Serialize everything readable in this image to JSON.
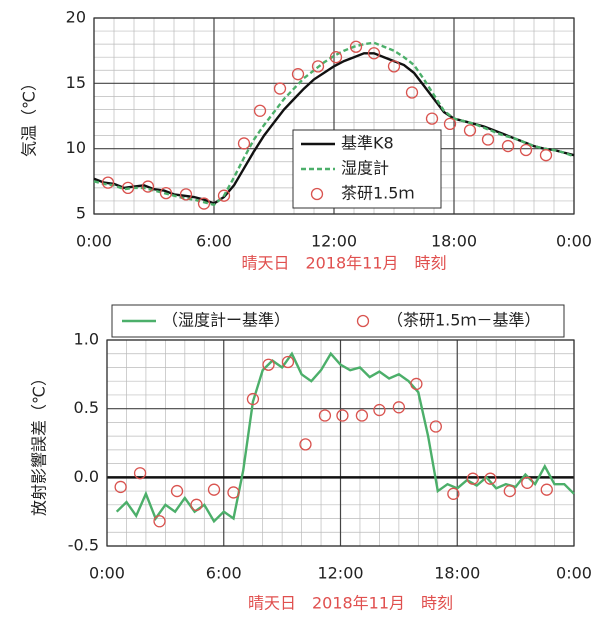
{
  "chart_data": [
    {
      "type": "line",
      "ylabel": "気温（℃）",
      "xlabel": "晴天日　2018年11月　時刻",
      "xlim": [
        0,
        24
      ],
      "xticks": [
        {
          "value": 0,
          "label": "0:00"
        },
        {
          "value": 6,
          "label": "6:00"
        },
        {
          "value": 12,
          "label": "12:00"
        },
        {
          "value": 18,
          "label": "18:00"
        },
        {
          "value": 24,
          "label": "0:00"
        }
      ],
      "ylim": [
        5,
        20
      ],
      "yticks": [
        5,
        10,
        15,
        20
      ],
      "grid": true,
      "legend": "center right",
      "series": [
        {
          "name": "基準K8",
          "color": "#111111",
          "style": "solid",
          "x": [
            0,
            0.5,
            1,
            1.5,
            2,
            2.5,
            3,
            3.5,
            4,
            4.5,
            5,
            5.5,
            6,
            6.5,
            7,
            7.5,
            8,
            8.5,
            9,
            9.5,
            10,
            10.5,
            11,
            11.5,
            12,
            12.5,
            13,
            13.5,
            14,
            14.5,
            15,
            15.5,
            16,
            16.5,
            17,
            17.5,
            18,
            18.5,
            19,
            19.5,
            20,
            20.5,
            21,
            21.5,
            22,
            22.5,
            23,
            23.5,
            24
          ],
          "values": [
            7.7,
            7.4,
            7.3,
            7.0,
            7.1,
            7.2,
            6.9,
            6.8,
            6.5,
            6.4,
            6.3,
            6.1,
            5.8,
            6.3,
            7.2,
            8.5,
            9.8,
            11.0,
            12.0,
            13.0,
            13.8,
            14.6,
            15.3,
            15.8,
            16.3,
            16.7,
            17.0,
            17.3,
            17.3,
            17.0,
            16.7,
            16.4,
            15.8,
            14.8,
            13.8,
            12.8,
            12.3,
            12.1,
            11.9,
            11.7,
            11.4,
            11.1,
            10.8,
            10.5,
            10.2,
            10.0,
            9.9,
            9.7,
            9.5
          ]
        },
        {
          "name": "湿度計",
          "color": "#4caf6a",
          "style": "dashed",
          "x": [
            0,
            0.5,
            1,
            1.5,
            2,
            2.5,
            3,
            3.5,
            4,
            4.5,
            5,
            5.5,
            6,
            6.5,
            7,
            7.5,
            8,
            8.5,
            9,
            9.5,
            10,
            10.5,
            11,
            11.5,
            12,
            12.5,
            13,
            13.5,
            14,
            14.5,
            15,
            15.5,
            16,
            16.5,
            17,
            17.5,
            18,
            18.5,
            19,
            19.5,
            20,
            20.5,
            21,
            21.5,
            22,
            22.5,
            23,
            23.5,
            24
          ],
          "values": [
            7.5,
            7.3,
            7.2,
            6.9,
            7.0,
            7.0,
            6.8,
            6.6,
            6.4,
            6.2,
            6.1,
            5.9,
            5.7,
            6.4,
            7.8,
            9.3,
            10.7,
            11.8,
            12.8,
            13.8,
            14.6,
            15.4,
            16.0,
            16.6,
            17.1,
            17.5,
            17.8,
            18.0,
            18.1,
            17.8,
            17.5,
            17.0,
            16.4,
            15.3,
            14.1,
            12.9,
            12.3,
            12.1,
            11.9,
            11.6,
            11.3,
            11.0,
            10.8,
            10.5,
            10.2,
            10.0,
            9.9,
            9.7,
            9.4
          ]
        },
        {
          "name": "茶研1.5ｍ",
          "color": "#d9534f",
          "style": "marker",
          "x": [
            0.7,
            1.7,
            2.7,
            3.6,
            4.6,
            5.5,
            6.5,
            7.5,
            8.3,
            9.3,
            10.2,
            11.2,
            12.1,
            13.1,
            14.0,
            15.0,
            15.9,
            16.9,
            17.8,
            18.8,
            19.7,
            20.7,
            21.6,
            22.6
          ],
          "values": [
            7.4,
            7.0,
            7.1,
            6.6,
            6.5,
            5.8,
            6.4,
            10.4,
            12.9,
            14.6,
            15.7,
            16.3,
            17.0,
            17.8,
            17.3,
            16.3,
            14.3,
            12.3,
            11.9,
            11.4,
            10.7,
            10.2,
            9.9,
            9.5
          ]
        }
      ]
    },
    {
      "type": "line",
      "ylabel": "放射影響誤差（℃）",
      "xlabel": "晴天日　2018年11月　時刻",
      "xlim": [
        0,
        24
      ],
      "xticks": [
        {
          "value": 0,
          "label": "0:00"
        },
        {
          "value": 6,
          "label": "6:00"
        },
        {
          "value": 12,
          "label": "12:00"
        },
        {
          "value": 18,
          "label": "18:00"
        },
        {
          "value": 24,
          "label": "0:00"
        }
      ],
      "ylim": [
        -0.5,
        1.0
      ],
      "yticks": [
        -0.5,
        {
          "value": 0,
          "label": "0.0"
        },
        0.5,
        {
          "value": 1,
          "label": "1.0"
        }
      ],
      "grid": true,
      "zero_line": true,
      "legend": "top",
      "series": [
        {
          "name": "（湿度計ー基準）",
          "color": "#4caf6a",
          "style": "solid",
          "x": [
            0.5,
            1,
            1.5,
            2,
            2.5,
            3,
            3.5,
            4,
            4.5,
            5,
            5.5,
            6,
            6.5,
            7,
            7.5,
            8,
            8.5,
            9,
            9.5,
            10,
            10.5,
            11,
            11.5,
            12,
            12.5,
            13,
            13.5,
            14,
            14.5,
            15,
            15.5,
            16,
            16.5,
            17,
            17.5,
            18,
            18.5,
            19,
            19.5,
            20,
            20.5,
            21,
            21.5,
            22,
            22.5,
            23,
            23.5,
            24
          ],
          "values": [
            -0.25,
            -0.18,
            -0.28,
            -0.12,
            -0.3,
            -0.2,
            -0.25,
            -0.15,
            -0.25,
            -0.2,
            -0.32,
            -0.25,
            -0.3,
            0.05,
            0.55,
            0.78,
            0.85,
            0.8,
            0.9,
            0.75,
            0.7,
            0.78,
            0.9,
            0.82,
            0.78,
            0.8,
            0.73,
            0.77,
            0.72,
            0.75,
            0.7,
            0.62,
            0.3,
            -0.1,
            -0.05,
            -0.08,
            -0.02,
            -0.06,
            0.0,
            -0.08,
            -0.05,
            -0.07,
            0.02,
            -0.05,
            0.08,
            -0.05,
            -0.05,
            -0.12
          ]
        },
        {
          "name": "（茶研1.5ｍ－基準）",
          "color": "#d9534f",
          "style": "marker",
          "x": [
            0.7,
            1.7,
            2.7,
            3.6,
            4.6,
            5.5,
            6.5,
            7.5,
            8.3,
            9.3,
            10.2,
            11.2,
            12.1,
            13.1,
            14.0,
            15.0,
            15.9,
            16.9,
            17.8,
            18.8,
            19.7,
            20.7,
            21.6,
            22.6
          ],
          "values": [
            -0.07,
            0.03,
            -0.32,
            -0.1,
            -0.2,
            -0.09,
            -0.11,
            0.57,
            0.82,
            0.84,
            0.24,
            0.45,
            0.45,
            0.45,
            0.49,
            0.51,
            0.68,
            0.37,
            -0.12,
            -0.01,
            -0.01,
            -0.1,
            -0.04,
            -0.09
          ]
        }
      ]
    }
  ]
}
